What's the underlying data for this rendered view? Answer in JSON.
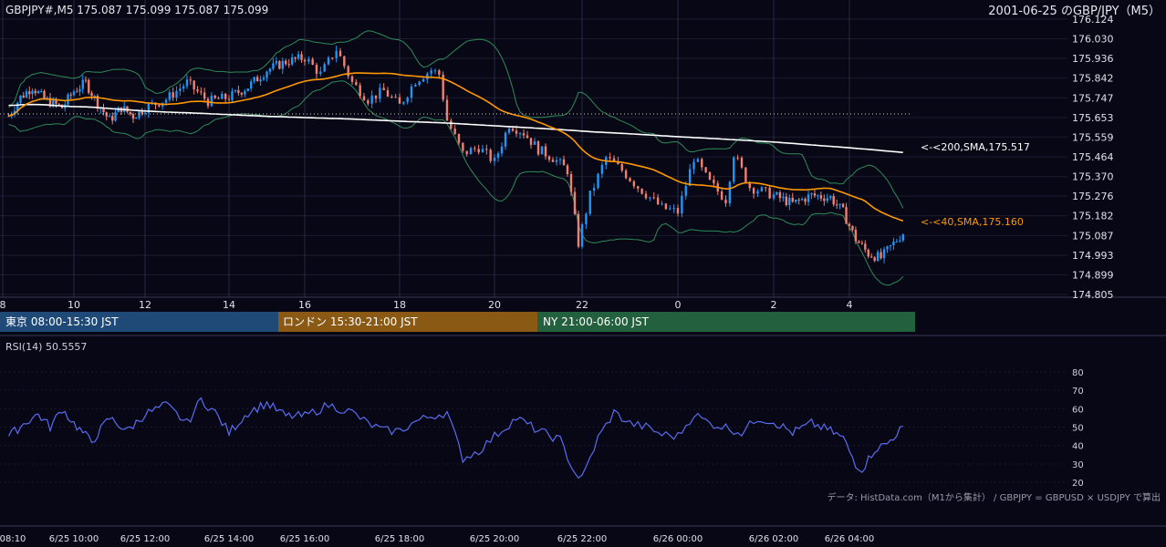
{
  "header": {
    "symbol_info": "GBPJPY#,M5 175.087 175.099 175.087 175.099",
    "title": "2001-06-25 のGBP/JPY（M5）"
  },
  "colors": {
    "background": "#070716",
    "bull": "#2196f3",
    "bear": "#f08070",
    "sma40": "#ff9800",
    "sma200": "#ffffff",
    "bollinger": "#2e8b57",
    "rsi_line": "#5a6cf0",
    "session_tokyo": "#1f4a78",
    "session_london": "#8a5a14",
    "session_ny": "#23603e"
  },
  "price_axis": {
    "ticks": [
      "176.124",
      "176.030",
      "175.936",
      "175.842",
      "175.747",
      "175.653",
      "175.559",
      "175.464",
      "175.370",
      "175.276",
      "175.182",
      "175.087",
      "174.993",
      "174.899",
      "174.805"
    ]
  },
  "hour_axis": {
    "ticks": [
      "8",
      "10",
      "12",
      "14",
      "16",
      "18",
      "20",
      "22",
      "0",
      "2",
      "4"
    ]
  },
  "date_axis": {
    "ticks": [
      "08:10",
      "6/25 10:00",
      "6/25 12:00",
      "6/25 14:00",
      "6/25 16:00",
      "6/25 18:00",
      "6/25 20:00",
      "6/25 22:00",
      "6/26 00:00",
      "6/26 02:00",
      "6/26 04:00"
    ]
  },
  "sessions": [
    {
      "label": "東京 08:00-15:30 JST",
      "color": "#1f4a78"
    },
    {
      "label": "ロンドン 15:30-21:00 JST",
      "color": "#8a5a14"
    },
    {
      "label": "NY 21:00-06:00 JST",
      "color": "#23603e"
    }
  ],
  "ma_labels": {
    "sma200": "<-<200,SMA,175.517",
    "sma40": "<-<40,SMA,175.160"
  },
  "rsi": {
    "label": "RSI(14) 50.5557",
    "ticks": [
      "80",
      "70",
      "60",
      "50",
      "40",
      "30",
      "20"
    ]
  },
  "footnote": "データ: HistData.com（M1から集計） / GBPJPY = GBPUSD × USDJPY で算出",
  "chart_data": [
    {
      "type": "candlestick",
      "title": "2001-06-25 のGBP/JPY（M5）",
      "timeframe": "M5",
      "time_range": [
        "2001-06-25 08:10",
        "2001-06-26 05:25"
      ],
      "ylim": [
        174.805,
        176.124
      ],
      "last_close": 175.099,
      "series": [
        {
          "name": "SMA 40",
          "last_value": 175.16
        },
        {
          "name": "SMA 200",
          "last_value": 175.517
        }
      ],
      "close_path": [
        [
          "08:10",
          175.66
        ],
        [
          "08:30",
          175.75
        ],
        [
          "08:50",
          175.8
        ],
        [
          "09:10",
          175.74
        ],
        [
          "09:40",
          175.7
        ],
        [
          "10:00",
          175.78
        ],
        [
          "10:20",
          175.82
        ],
        [
          "10:40",
          175.72
        ],
        [
          "11:00",
          175.64
        ],
        [
          "11:20",
          175.7
        ],
        [
          "11:40",
          175.66
        ],
        [
          "12:00",
          175.7
        ],
        [
          "12:30",
          175.74
        ],
        [
          "13:00",
          175.82
        ],
        [
          "13:30",
          175.73
        ],
        [
          "14:00",
          175.75
        ],
        [
          "14:30",
          175.8
        ],
        [
          "15:00",
          175.88
        ],
        [
          "15:30",
          175.92
        ],
        [
          "16:00",
          175.94
        ],
        [
          "16:20",
          175.86
        ],
        [
          "16:40",
          175.98
        ],
        [
          "17:00",
          175.82
        ],
        [
          "17:20",
          175.74
        ],
        [
          "17:40",
          175.78
        ],
        [
          "18:00",
          175.71
        ],
        [
          "18:20",
          175.83
        ],
        [
          "18:40",
          175.88
        ],
        [
          "18:50",
          175.86
        ],
        [
          "19:00",
          175.64
        ],
        [
          "19:20",
          175.48
        ],
        [
          "19:40",
          175.51
        ],
        [
          "20:00",
          175.44
        ],
        [
          "20:20",
          175.62
        ],
        [
          "20:40",
          175.58
        ],
        [
          "21:00",
          175.5
        ],
        [
          "21:20",
          175.46
        ],
        [
          "21:40",
          175.4
        ],
        [
          "21:55",
          175.05
        ],
        [
          "22:10",
          175.28
        ],
        [
          "22:30",
          175.46
        ],
        [
          "22:50",
          175.4
        ],
        [
          "23:10",
          175.32
        ],
        [
          "23:40",
          175.22
        ],
        [
          "24:00",
          175.2
        ],
        [
          "00:20",
          175.46
        ],
        [
          "00:40",
          175.34
        ],
        [
          "01:00",
          175.26
        ],
        [
          "01:10",
          175.48
        ],
        [
          "01:30",
          175.32
        ],
        [
          "02:00",
          175.28
        ],
        [
          "02:30",
          175.24
        ],
        [
          "03:00",
          175.28
        ],
        [
          "03:30",
          175.27
        ],
        [
          "03:50",
          175.2
        ],
        [
          "04:10",
          175.07
        ],
        [
          "04:30",
          175.0
        ],
        [
          "04:50",
          174.98
        ],
        [
          "05:10",
          175.05
        ],
        [
          "05:25",
          175.1
        ]
      ]
    },
    {
      "type": "line",
      "title": "RSI(14) 50.5557",
      "ylim": [
        20,
        80
      ],
      "series": [
        {
          "name": "RSI(14)",
          "x": [
            "08:10",
            "08:40",
            "09:00",
            "09:20",
            "09:40",
            "10:00",
            "10:30",
            "11:00",
            "11:30",
            "12:00",
            "12:30",
            "13:00",
            "13:20",
            "13:40",
            "14:00",
            "14:30",
            "15:00",
            "15:30",
            "16:00",
            "16:30",
            "17:00",
            "17:20",
            "17:40",
            "18:00",
            "18:20",
            "18:40",
            "19:00",
            "19:20",
            "19:40",
            "20:00",
            "20:30",
            "21:00",
            "21:30",
            "21:50",
            "22:00",
            "22:20",
            "22:40",
            "23:00",
            "23:20",
            "23:40",
            "24:00",
            "00:20",
            "00:40",
            "01:00",
            "01:20",
            "01:40",
            "02:00",
            "02:30",
            "03:00",
            "03:30",
            "03:50",
            "04:10",
            "04:20",
            "04:40",
            "05:00",
            "05:25"
          ],
          "values": [
            45,
            53,
            57,
            50,
            60,
            52,
            42,
            55,
            48,
            57,
            62,
            52,
            65,
            58,
            47,
            58,
            63,
            56,
            56,
            62,
            58,
            52,
            48,
            48,
            53,
            56,
            58,
            33,
            37,
            45,
            55,
            48,
            43,
            25,
            22,
            44,
            58,
            52,
            50,
            46,
            45,
            57,
            52,
            50,
            47,
            55,
            53,
            47,
            52,
            48,
            44,
            30,
            27,
            38,
            41,
            50.56
          ]
        }
      ]
    }
  ]
}
